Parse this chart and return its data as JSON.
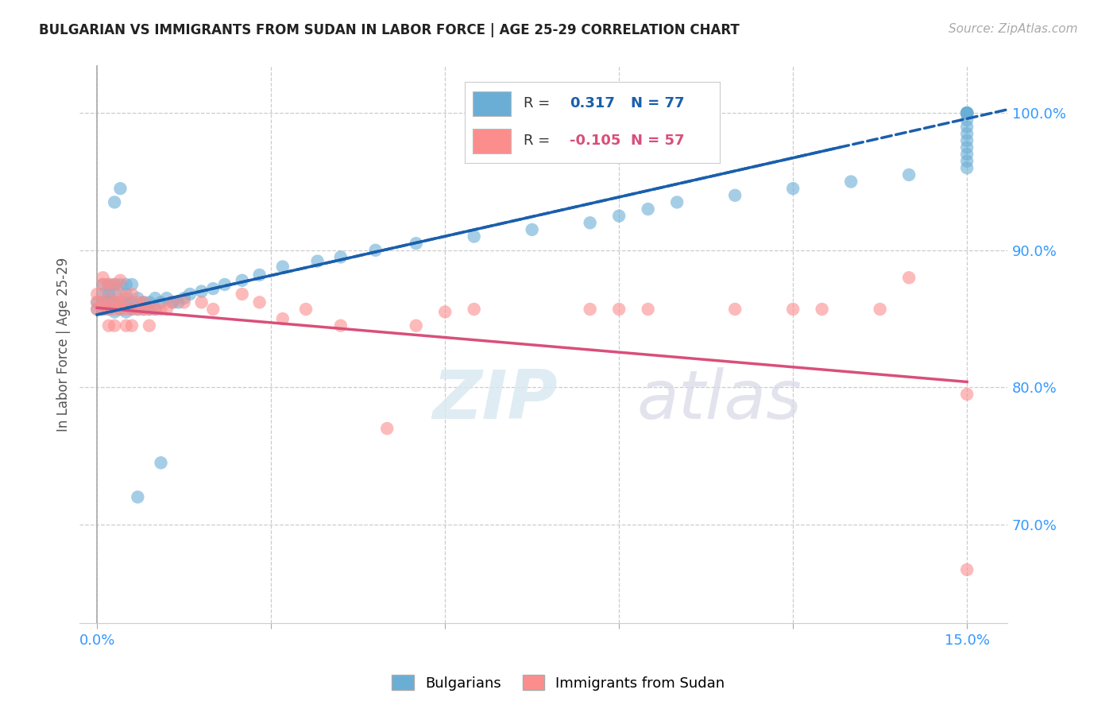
{
  "title": "BULGARIAN VS IMMIGRANTS FROM SUDAN IN LABOR FORCE | AGE 25-29 CORRELATION CHART",
  "source": "Source: ZipAtlas.com",
  "ylabel": "In Labor Force | Age 25-29",
  "xlim_min": -0.003,
  "xlim_max": 0.157,
  "ylim_min": 0.628,
  "ylim_max": 1.035,
  "yticks": [
    0.7,
    0.8,
    0.9,
    1.0
  ],
  "ytick_labels": [
    "70.0%",
    "80.0%",
    "90.0%",
    "100.0%"
  ],
  "xticks": [
    0.0,
    0.03,
    0.06,
    0.09,
    0.12,
    0.15
  ],
  "xtick_labels": [
    "0.0%",
    "",
    "",
    "",
    "",
    "15.0%"
  ],
  "blue_color": "#6aaed6",
  "pink_color": "#fc8d8d",
  "blue_line_color": "#1a5fac",
  "pink_line_color": "#d94f7a",
  "watermark": "ZIPatlas",
  "legend1_label": "Bulgarians",
  "legend2_label": "Immigrants from Sudan",
  "blue_x": [
    0.0,
    0.0,
    0.001,
    0.001,
    0.001,
    0.001,
    0.002,
    0.002,
    0.002,
    0.002,
    0.003,
    0.003,
    0.003,
    0.003,
    0.004,
    0.004,
    0.004,
    0.005,
    0.005,
    0.005,
    0.005,
    0.006,
    0.006,
    0.006,
    0.007,
    0.007,
    0.008,
    0.008,
    0.009,
    0.009,
    0.01,
    0.01,
    0.011,
    0.012,
    0.013,
    0.014,
    0.015,
    0.016,
    0.018,
    0.02,
    0.022,
    0.025,
    0.028,
    0.032,
    0.038,
    0.042,
    0.048,
    0.055,
    0.065,
    0.075,
    0.085,
    0.09,
    0.095,
    0.1,
    0.11,
    0.12,
    0.13,
    0.14,
    0.15,
    0.15,
    0.15,
    0.15,
    0.15,
    0.15,
    0.15,
    0.15,
    0.15,
    0.15,
    0.15,
    0.15,
    0.15,
    0.15,
    0.15,
    0.007,
    0.011,
    0.003,
    0.004
  ],
  "blue_y": [
    0.857,
    0.862,
    0.857,
    0.862,
    0.868,
    0.875,
    0.857,
    0.862,
    0.868,
    0.875,
    0.855,
    0.862,
    0.868,
    0.875,
    0.857,
    0.862,
    0.875,
    0.855,
    0.862,
    0.868,
    0.875,
    0.857,
    0.862,
    0.875,
    0.857,
    0.865,
    0.857,
    0.862,
    0.857,
    0.862,
    0.857,
    0.865,
    0.862,
    0.865,
    0.862,
    0.862,
    0.865,
    0.868,
    0.87,
    0.872,
    0.875,
    0.878,
    0.882,
    0.888,
    0.892,
    0.895,
    0.9,
    0.905,
    0.91,
    0.915,
    0.92,
    0.925,
    0.93,
    0.935,
    0.94,
    0.945,
    0.95,
    0.955,
    0.96,
    0.965,
    0.97,
    0.975,
    0.98,
    0.985,
    0.99,
    0.995,
    1.0,
    1.0,
    1.0,
    1.0,
    1.0,
    1.0,
    1.0,
    0.72,
    0.745,
    0.935,
    0.945
  ],
  "pink_x": [
    0.0,
    0.0,
    0.0,
    0.001,
    0.001,
    0.001,
    0.001,
    0.002,
    0.002,
    0.002,
    0.002,
    0.003,
    0.003,
    0.003,
    0.003,
    0.004,
    0.004,
    0.004,
    0.004,
    0.005,
    0.005,
    0.005,
    0.006,
    0.006,
    0.006,
    0.007,
    0.007,
    0.008,
    0.008,
    0.009,
    0.009,
    0.01,
    0.011,
    0.012,
    0.013,
    0.015,
    0.018,
    0.02,
    0.025,
    0.028,
    0.032,
    0.036,
    0.042,
    0.05,
    0.055,
    0.06,
    0.065,
    0.085,
    0.09,
    0.095,
    0.11,
    0.12,
    0.125,
    0.135,
    0.14,
    0.15,
    0.15
  ],
  "pink_y": [
    0.857,
    0.862,
    0.868,
    0.88,
    0.857,
    0.862,
    0.875,
    0.845,
    0.857,
    0.865,
    0.875,
    0.845,
    0.857,
    0.862,
    0.875,
    0.857,
    0.862,
    0.868,
    0.878,
    0.845,
    0.857,
    0.865,
    0.845,
    0.857,
    0.868,
    0.857,
    0.862,
    0.857,
    0.862,
    0.845,
    0.857,
    0.857,
    0.857,
    0.857,
    0.862,
    0.862,
    0.862,
    0.857,
    0.868,
    0.862,
    0.85,
    0.857,
    0.845,
    0.77,
    0.845,
    0.855,
    0.857,
    0.857,
    0.857,
    0.857,
    0.857,
    0.857,
    0.857,
    0.857,
    0.88,
    0.795,
    0.667
  ]
}
